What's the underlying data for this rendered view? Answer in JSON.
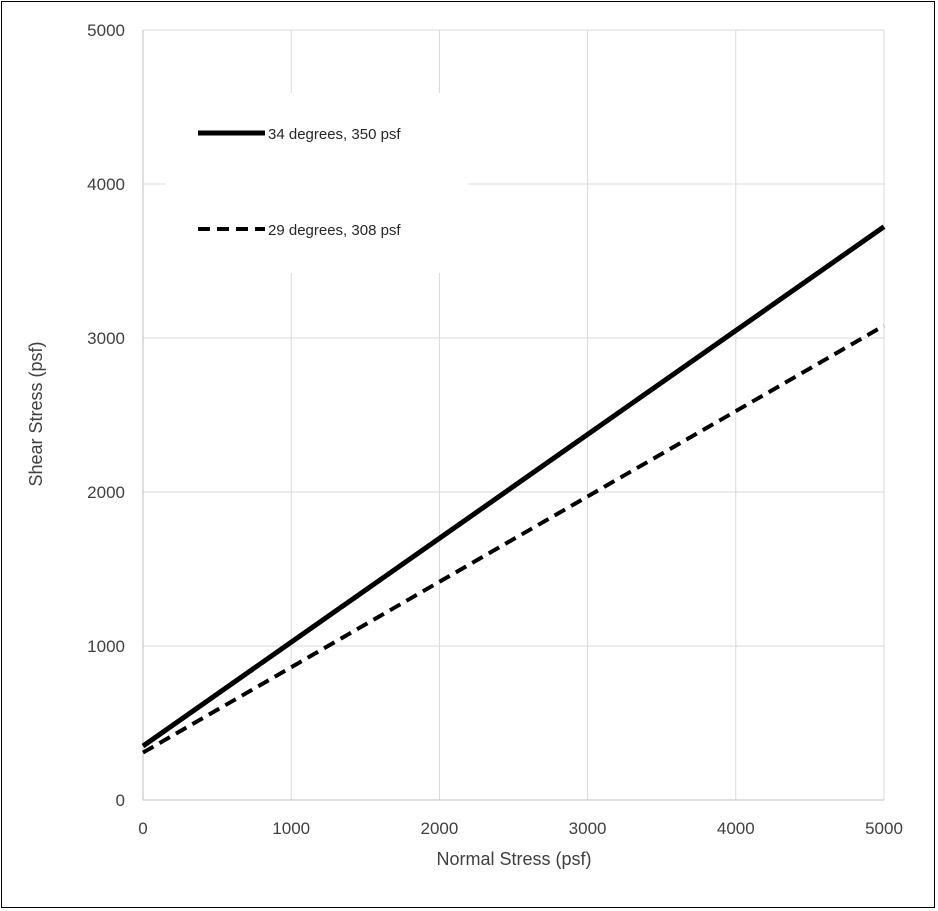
{
  "chart_data": {
    "type": "line",
    "xlabel": "Normal Stress (psf)",
    "ylabel": "Shear Stress (psf)",
    "xlim": [
      0,
      5000
    ],
    "ylim": [
      0,
      5000
    ],
    "x_ticks": [
      "0",
      "1000",
      "2000",
      "3000",
      "4000",
      "5000"
    ],
    "y_ticks": [
      "0",
      "1000",
      "2000",
      "3000",
      "4000",
      "5000"
    ],
    "grid": true,
    "legend_position": "top-left",
    "series": [
      {
        "name": "34 degrees, 350 psf",
        "style": "solid",
        "color": "#000000",
        "x": [
          0,
          1000,
          2000,
          3000,
          4000,
          5000
        ],
        "y": [
          350,
          1025,
          1699,
          2374,
          3048,
          3723
        ]
      },
      {
        "name": "29 degrees, 308 psf",
        "style": "dashed",
        "color": "#000000",
        "x": [
          0,
          1000,
          2000,
          3000,
          4000,
          5000
        ],
        "y": [
          308,
          862,
          1417,
          1971,
          2525,
          3080
        ]
      }
    ]
  }
}
